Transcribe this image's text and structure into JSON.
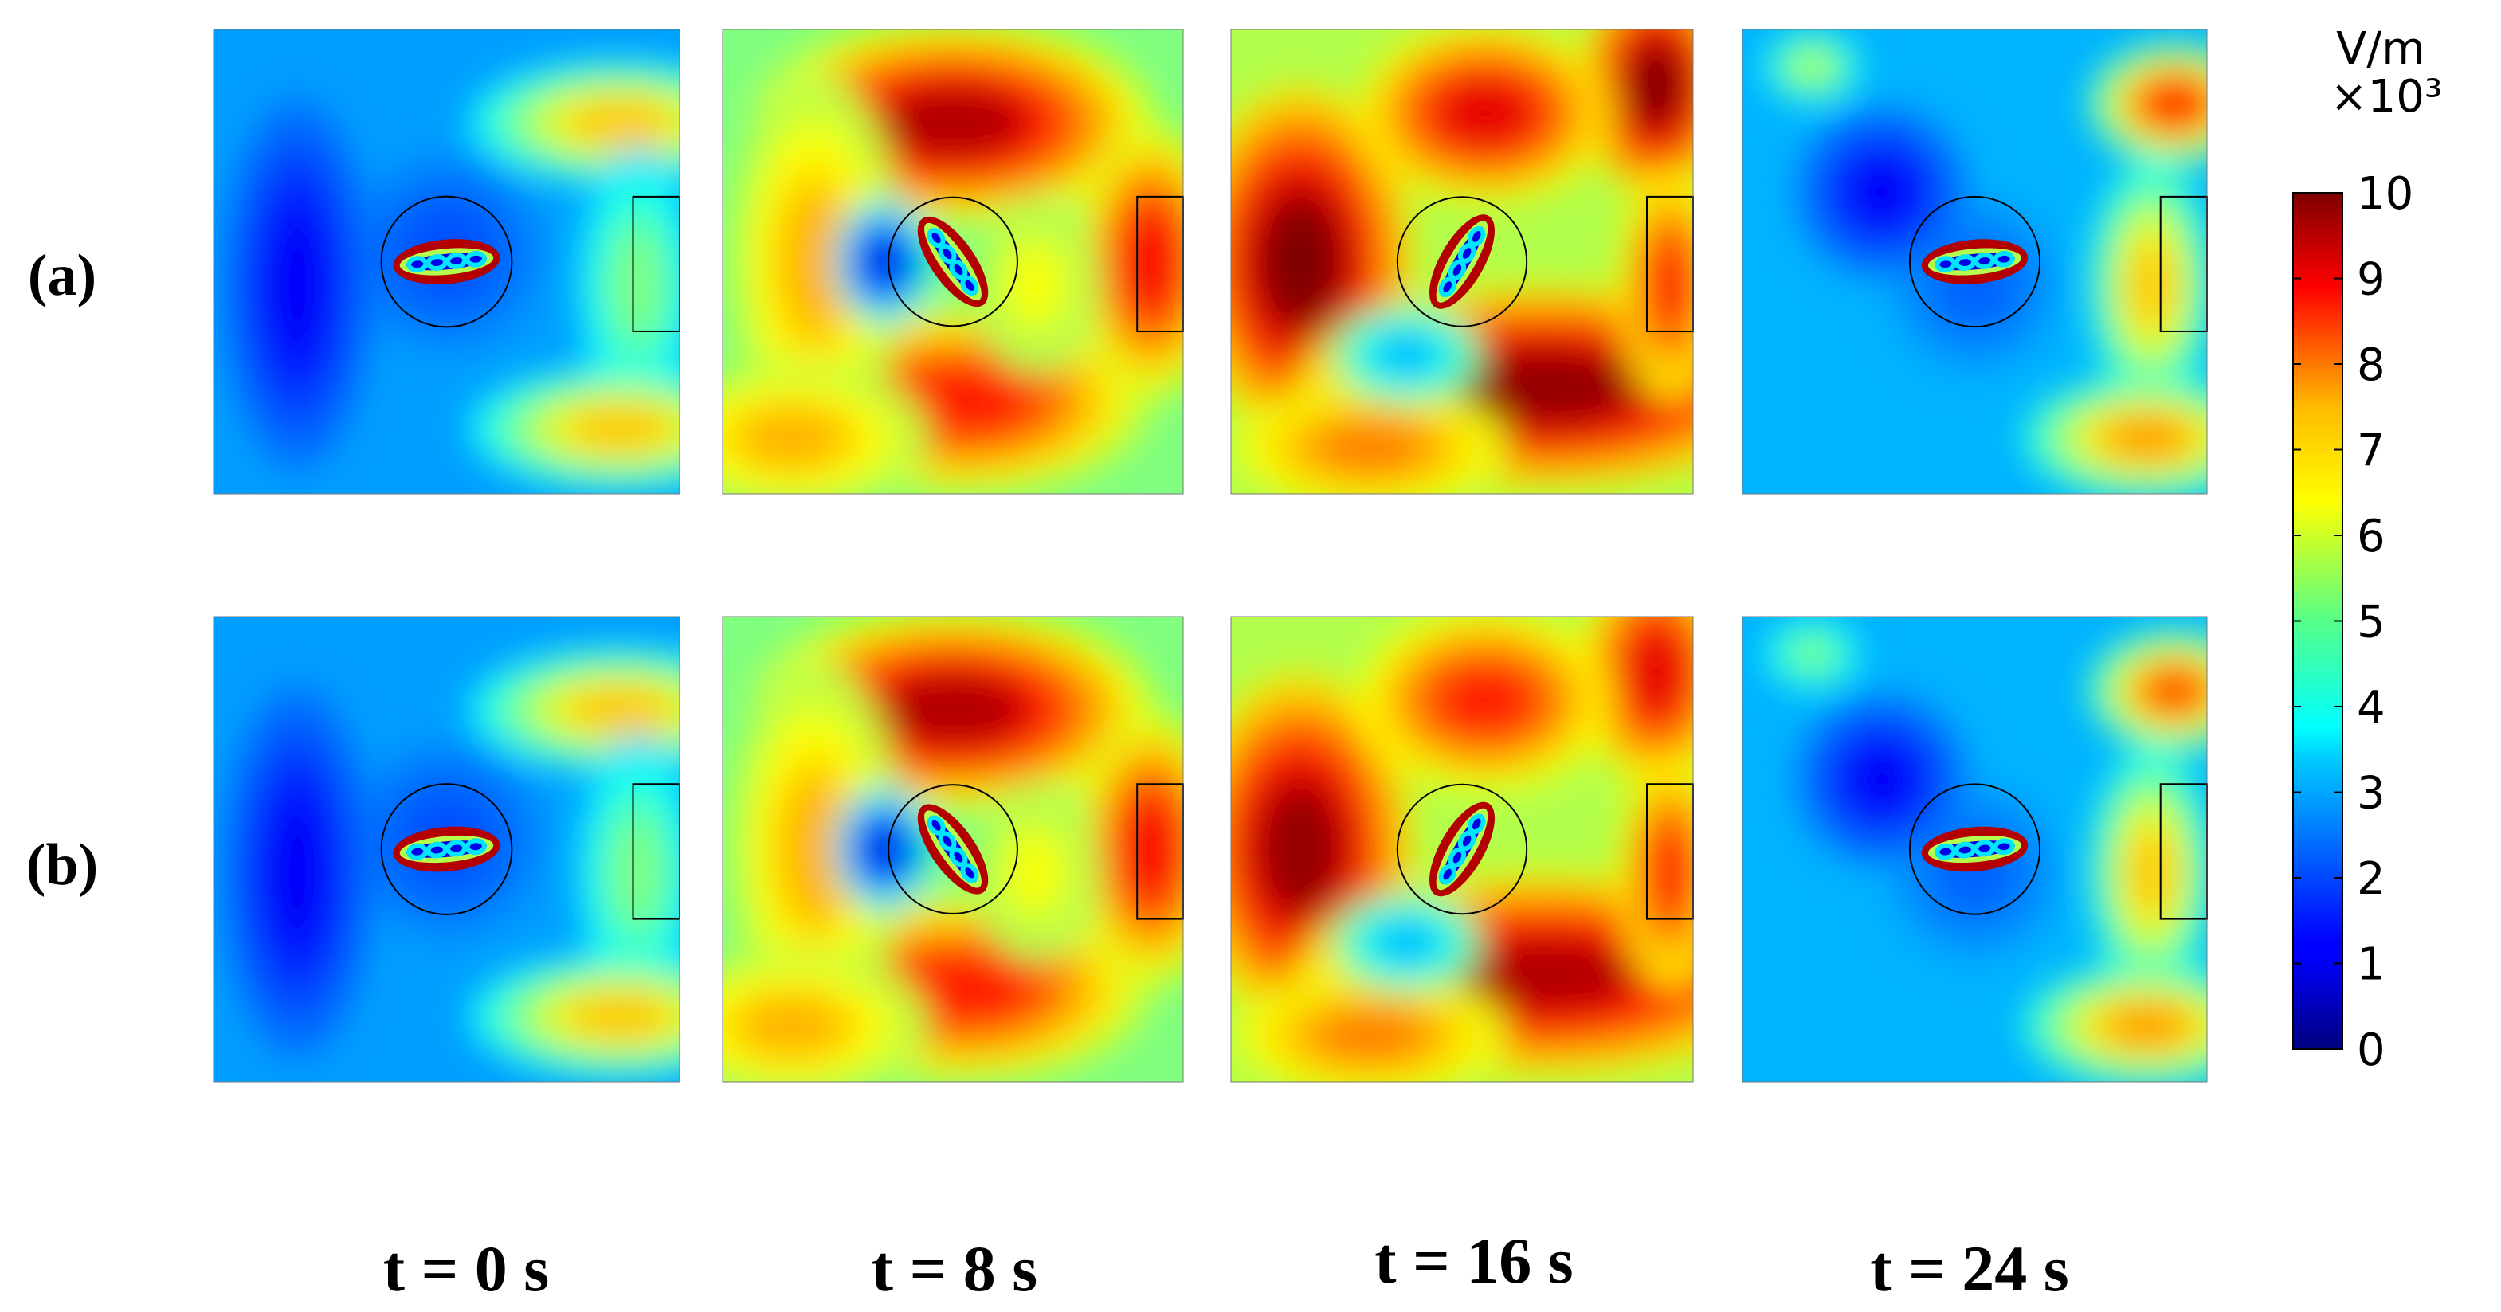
{
  "chart_data": {
    "type": "heatmap",
    "quantity_unit": "V/m",
    "colorbar": {
      "unit": "V/m",
      "multiplier": "×10³",
      "range": [
        0,
        10
      ],
      "ticks": [
        "10",
        "9",
        "8",
        "7",
        "6",
        "5",
        "4",
        "3",
        "2",
        "1",
        "0"
      ],
      "colormap": "jet"
    },
    "rows": [
      {
        "label": "(a)"
      },
      {
        "label": "(b)"
      }
    ],
    "columns": [
      {
        "label": "t = 0 s"
      },
      {
        "label": "t = 8 s"
      },
      {
        "label": "t = 16 s"
      },
      {
        "label": "t = 24 s"
      }
    ],
    "panels": [
      {
        "row": 0,
        "col": 0,
        "tilt_deg": -5,
        "level": 0.28,
        "blobs": [
          [
            0.87,
            0.2,
            0.24,
            0.1,
            0.68
          ],
          [
            0.91,
            0.55,
            0.1,
            0.22,
            0.5
          ],
          [
            0.87,
            0.86,
            0.24,
            0.1,
            0.68
          ],
          [
            0.5,
            0.48,
            0.16,
            0.16,
            0.2
          ],
          [
            0.18,
            0.55,
            0.12,
            0.3,
            0.12
          ]
        ]
      },
      {
        "row": 0,
        "col": 1,
        "tilt_deg": 55,
        "level": 0.5,
        "blobs": [
          [
            0.5,
            0.2,
            0.32,
            0.16,
            0.95
          ],
          [
            0.52,
            0.8,
            0.3,
            0.15,
            0.85
          ],
          [
            0.93,
            0.5,
            0.12,
            0.22,
            0.88
          ],
          [
            0.2,
            0.5,
            0.14,
            0.3,
            0.7
          ],
          [
            0.68,
            0.55,
            0.1,
            0.14,
            0.62
          ],
          [
            0.15,
            0.88,
            0.22,
            0.12,
            0.7
          ],
          [
            0.35,
            0.5,
            0.08,
            0.1,
            0.1
          ]
        ]
      },
      {
        "row": 0,
        "col": 2,
        "tilt_deg": -60,
        "level": 0.55,
        "blobs": [
          [
            0.15,
            0.5,
            0.18,
            0.28,
            1.0
          ],
          [
            0.68,
            0.77,
            0.4,
            0.16,
            0.98
          ],
          [
            0.92,
            0.12,
            0.12,
            0.18,
            1.0
          ],
          [
            0.55,
            0.18,
            0.2,
            0.14,
            0.9
          ],
          [
            0.95,
            0.55,
            0.08,
            0.18,
            0.85
          ],
          [
            0.3,
            0.9,
            0.22,
            0.1,
            0.75
          ],
          [
            0.38,
            0.7,
            0.12,
            0.08,
            0.3
          ]
        ]
      },
      {
        "row": 0,
        "col": 3,
        "tilt_deg": -5,
        "level": 0.3,
        "blobs": [
          [
            0.93,
            0.16,
            0.14,
            0.1,
            0.85
          ],
          [
            0.88,
            0.55,
            0.1,
            0.2,
            0.68
          ],
          [
            0.87,
            0.88,
            0.2,
            0.1,
            0.72
          ],
          [
            0.15,
            0.08,
            0.08,
            0.06,
            0.55
          ],
          [
            0.5,
            0.55,
            0.14,
            0.14,
            0.22
          ],
          [
            0.3,
            0.35,
            0.14,
            0.14,
            0.12
          ]
        ]
      },
      {
        "row": 1,
        "col": 0,
        "tilt_deg": -5,
        "level": 0.28,
        "blobs": [
          [
            0.87,
            0.2,
            0.24,
            0.1,
            0.68
          ],
          [
            0.91,
            0.55,
            0.1,
            0.22,
            0.5
          ],
          [
            0.87,
            0.86,
            0.24,
            0.1,
            0.68
          ],
          [
            0.5,
            0.48,
            0.16,
            0.16,
            0.2
          ],
          [
            0.18,
            0.55,
            0.12,
            0.3,
            0.12
          ]
        ]
      },
      {
        "row": 1,
        "col": 1,
        "tilt_deg": 55,
        "level": 0.5,
        "blobs": [
          [
            0.5,
            0.2,
            0.32,
            0.16,
            0.95
          ],
          [
            0.52,
            0.8,
            0.3,
            0.15,
            0.85
          ],
          [
            0.93,
            0.5,
            0.12,
            0.22,
            0.88
          ],
          [
            0.2,
            0.5,
            0.14,
            0.3,
            0.7
          ],
          [
            0.68,
            0.55,
            0.1,
            0.14,
            0.62
          ],
          [
            0.15,
            0.88,
            0.22,
            0.12,
            0.7
          ],
          [
            0.35,
            0.5,
            0.08,
            0.1,
            0.1
          ]
        ]
      },
      {
        "row": 1,
        "col": 2,
        "tilt_deg": -60,
        "level": 0.55,
        "blobs": [
          [
            0.15,
            0.5,
            0.18,
            0.28,
            0.98
          ],
          [
            0.68,
            0.77,
            0.4,
            0.16,
            0.95
          ],
          [
            0.92,
            0.12,
            0.12,
            0.18,
            0.9
          ],
          [
            0.55,
            0.18,
            0.2,
            0.14,
            0.85
          ],
          [
            0.95,
            0.55,
            0.08,
            0.18,
            0.85
          ],
          [
            0.3,
            0.9,
            0.22,
            0.1,
            0.75
          ],
          [
            0.38,
            0.7,
            0.12,
            0.08,
            0.3
          ]
        ]
      },
      {
        "row": 1,
        "col": 3,
        "tilt_deg": -5,
        "level": 0.3,
        "blobs": [
          [
            0.93,
            0.16,
            0.14,
            0.1,
            0.8
          ],
          [
            0.88,
            0.55,
            0.1,
            0.2,
            0.68
          ],
          [
            0.87,
            0.88,
            0.2,
            0.1,
            0.72
          ],
          [
            0.15,
            0.08,
            0.08,
            0.06,
            0.5
          ],
          [
            0.5,
            0.55,
            0.14,
            0.14,
            0.22
          ],
          [
            0.3,
            0.35,
            0.14,
            0.14,
            0.12
          ]
        ]
      }
    ]
  }
}
